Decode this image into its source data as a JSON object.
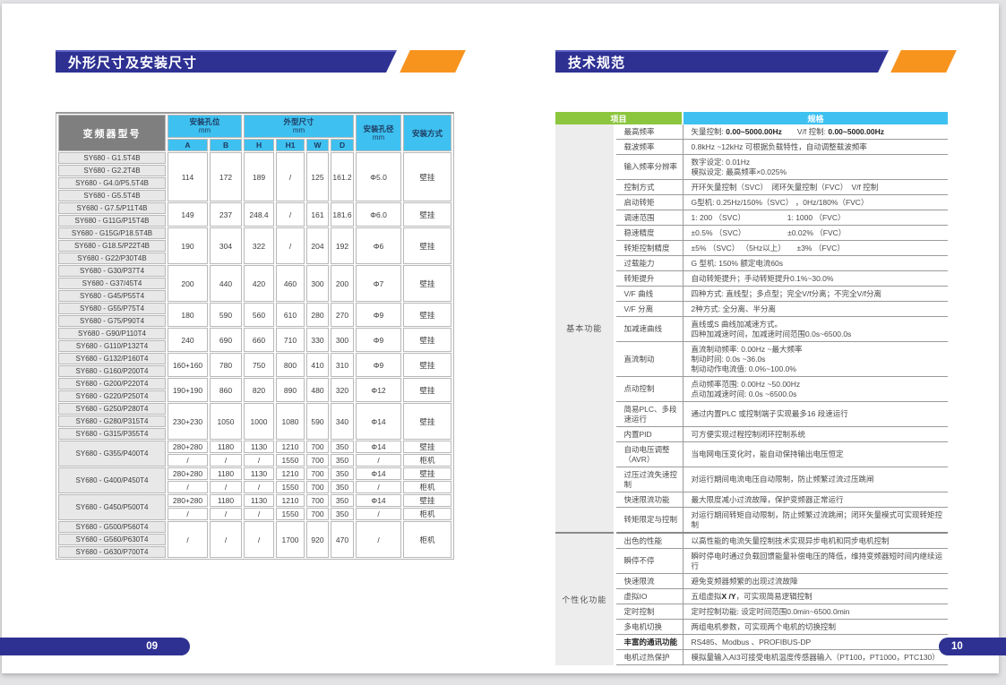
{
  "colors": {
    "title_bar_blue": "#2E3192",
    "accent_orange": "#F7941E",
    "model_header_gray": "#7F7F7F",
    "table_header_blue": "#3EC1F0",
    "spec_header_green": "#8CC63F",
    "page_pill_blue": "#2E3192"
  },
  "left_page": {
    "title": "外形尺寸及安装尺寸",
    "page_number": "09",
    "table": {
      "header": {
        "model": "变频器型号",
        "mount_hole_group": "安装孔位",
        "dim_group": "外型尺寸",
        "unit": "mm",
        "hole_dia": "安装孔径",
        "mount_type": "安装方式",
        "sub_cols": [
          "A",
          "B",
          "H",
          "H1",
          "W",
          "D"
        ]
      },
      "groups": [
        {
          "models": [
            "SY680 - G1.5T4B",
            "SY680 - G2.2T4B",
            "SY680 - G4.0/P5.5T4B",
            "SY680 - G5.5T4B"
          ],
          "rows": [
            [
              "114",
              "172",
              "189",
              "/",
              "125",
              "161.2",
              "Φ5.0",
              "壁挂"
            ]
          ]
        },
        {
          "models": [
            "SY680 - G7.5/P11T4B",
            "SY680 - G11G/P15T4B"
          ],
          "rows": [
            [
              "149",
              "237",
              "248.4",
              "/",
              "161",
              "181.6",
              "Φ6.0",
              "壁挂"
            ]
          ]
        },
        {
          "models": [
            "SY680 - G15G/P18.5T4B",
            "SY680 - G18.5/P22T4B",
            "SY680 - G22/P30T4B"
          ],
          "rows": [
            [
              "190",
              "304",
              "322",
              "/",
              "204",
              "192",
              "Φ6",
              "壁挂"
            ]
          ]
        },
        {
          "models": [
            "SY680 - G30/P37T4",
            "SY680 - G37/45T4",
            "SY680 - G45/P55T4"
          ],
          "rows": [
            [
              "200",
              "440",
              "420",
              "460",
              "300",
              "200",
              "Φ7",
              "壁挂"
            ]
          ]
        },
        {
          "models": [
            "SY680 - G55/P75T4",
            "SY680 - G75/P90T4"
          ],
          "rows": [
            [
              "180",
              "590",
              "560",
              "610",
              "280",
              "270",
              "Φ9",
              "壁挂"
            ]
          ]
        },
        {
          "models": [
            "SY680 - G90/P110T4",
            "SY680 - G110/P132T4"
          ],
          "rows": [
            [
              "240",
              "690",
              "660",
              "710",
              "330",
              "300",
              "Φ9",
              "壁挂"
            ]
          ]
        },
        {
          "models": [
            "SY680 - G132/P160T4",
            "SY680 - G160/P200T4"
          ],
          "rows": [
            [
              "160+160",
              "780",
              "750",
              "800",
              "410",
              "310",
              "Φ9",
              "壁挂"
            ]
          ]
        },
        {
          "models": [
            "SY680 - G200/P220T4",
            "SY680 - G220/P250T4"
          ],
          "rows": [
            [
              "190+190",
              "860",
              "820",
              "890",
              "480",
              "320",
              "Φ12",
              "壁挂"
            ]
          ]
        },
        {
          "models": [
            "SY680 - G250/P280T4",
            "SY680 - G280/P315T4",
            "SY680 - G315/P355T4"
          ],
          "rows": [
            [
              "230+230",
              "1050",
              "1000",
              "1080",
              "590",
              "340",
              "Φ14",
              "壁挂"
            ]
          ]
        },
        {
          "models": [
            "SY680 - G355/P400T4"
          ],
          "rows": [
            [
              "280+280",
              "1180",
              "1130",
              "1210",
              "700",
              "350",
              "Φ14",
              "壁挂"
            ],
            [
              "/",
              "/",
              "/",
              "1550",
              "700",
              "350",
              "/",
              "柜机"
            ]
          ]
        },
        {
          "models": [
            "SY680 - G400/P450T4"
          ],
          "rows": [
            [
              "280+280",
              "1180",
              "1130",
              "1210",
              "700",
              "350",
              "Φ14",
              "壁挂"
            ],
            [
              "/",
              "/",
              "/",
              "1550",
              "700",
              "350",
              "/",
              "柜机"
            ]
          ]
        },
        {
          "models": [
            "SY680 - G450/P500T4"
          ],
          "rows": [
            [
              "280+280",
              "1180",
              "1130",
              "1210",
              "700",
              "350",
              "Φ14",
              "壁挂"
            ],
            [
              "/",
              "/",
              "/",
              "1550",
              "700",
              "350",
              "/",
              "柜机"
            ]
          ]
        },
        {
          "models": [
            "SY680 - G500/P560T4",
            "SY680 - G560/P630T4",
            "SY680 - G630/P700T4"
          ],
          "rows": [
            [
              "/",
              "/",
              "/",
              "1700",
              "920",
              "470",
              "/",
              "柜机"
            ]
          ]
        }
      ]
    }
  },
  "right_page": {
    "title": "技术规范",
    "page_number": "10",
    "table": {
      "header": {
        "item": "项目",
        "spec": "规格"
      },
      "categories": [
        {
          "name": "基本功能",
          "rows": [
            {
              "item": "最高频率",
              "spec": "矢量控制: **0.00~5000.00Hz**　　V/f 控制: **0.00~5000.00Hz**"
            },
            {
              "item": "载波频率",
              "spec": "0.8kHz ~12kHz 可根据负载特性，自动调整载波频率"
            },
            {
              "item": "输入频率分辨率",
              "spec": "数字设定: 0.01Hz\n模拟设定: 最高频率×0.025%"
            },
            {
              "item": "控制方式",
              "spec": "开环矢量控制（SVC）　闭环矢量控制（FVC）　V/f 控制"
            },
            {
              "item": "启动转矩",
              "spec": "G型机: 0.25Hz/150%（SVC） ，0Hz/180%（FVC）"
            },
            {
              "item": "调速范围",
              "spec": "1: 200 （SVC）　　　　　　1: 1000 （FVC）"
            },
            {
              "item": "稳速精度",
              "spec": "±0.5% （SVC）　　　　　　±0.02% （FVC）"
            },
            {
              "item": "转矩控制精度",
              "spec": "±5% （SVC） （5Hz以上）　　±3% （FVC）"
            },
            {
              "item": "过载能力",
              "spec": "G 型机: 150% 额定电流60s"
            },
            {
              "item": "转矩提升",
              "spec": "自动转矩提升；手动转矩提升0.1%~30.0%"
            },
            {
              "item": "V/F 曲线",
              "spec": "四种方式: 直线型；多点型；完全V/f分离；不完全V/f分离"
            },
            {
              "item": "V/F 分离",
              "spec": "2种方式: 全分离、半分离"
            },
            {
              "item": "加减速曲线",
              "spec": "直线或S 曲线加减速方式。\n四种加减速时间，加减速时间范围0.0s~6500.0s"
            },
            {
              "item": "直流制动",
              "spec": "直流制动频率: 0.00Hz ~最大频率\n制动时间: 0.0s ~36.0s\n制动动作电流值: 0.0%~100.0%"
            },
            {
              "item": "点动控制",
              "spec": "点动频率范围: 0.00Hz ~50.00Hz\n点动加减速时间: 0.0s ~6500.0s"
            },
            {
              "item": "简易PLC、多段速运行",
              "spec": "通过内置PLC 或控制端子实现最多16 段速运行"
            },
            {
              "item": "内置PID",
              "spec": "可方便实现过程控制闭环控制系统"
            },
            {
              "item": "自动电压调整（AVR）",
              "spec": "当电网电压变化时，能自动保持输出电压恒定"
            },
            {
              "item": "过压过流失速控制",
              "spec": "对运行期间电流电压自动限制，防止频繁过流过压跳闸"
            },
            {
              "item": "快速限流功能",
              "spec": "最大限度减小过流故障，保护变频器正常运行"
            },
            {
              "item": "转矩限定与控制",
              "spec": "对运行期间转矩自动限制，防止频繁过流跳闸；闭环矢量模式可实现转矩控制"
            }
          ]
        },
        {
          "name": "个性化功能",
          "rows": [
            {
              "item": "出色的性能",
              "spec": "以高性能的电流矢量控制技术实现异步电机和同步电机控制"
            },
            {
              "item": "瞬停不停",
              "spec": "瞬时停电时通过负载回馈能量补偿电压的降低，维持变频器短时间内继续运行"
            },
            {
              "item": "快速限流",
              "spec": "避免变频器频繁的出现过流故障"
            },
            {
              "item": "虚拟IO",
              "spec": "五组虚拟**X /Y**，可实现简易逻辑控制"
            },
            {
              "item": "定时控制",
              "spec": "定时控制功能: 设定时间范围0.0min~6500.0min"
            },
            {
              "item": "多电机切换",
              "spec": "两组电机参数，可实现两个电机的切换控制"
            },
            {
              "item": "**丰富的通讯功能**",
              "spec": "RS485、Modbus 、PROFIBUS-DP"
            },
            {
              "item": "电机过热保护",
              "spec": "模拟量输入AI3可接受电机温度传感器输入（PT100，PT1000，PTC130）"
            }
          ]
        }
      ]
    }
  }
}
